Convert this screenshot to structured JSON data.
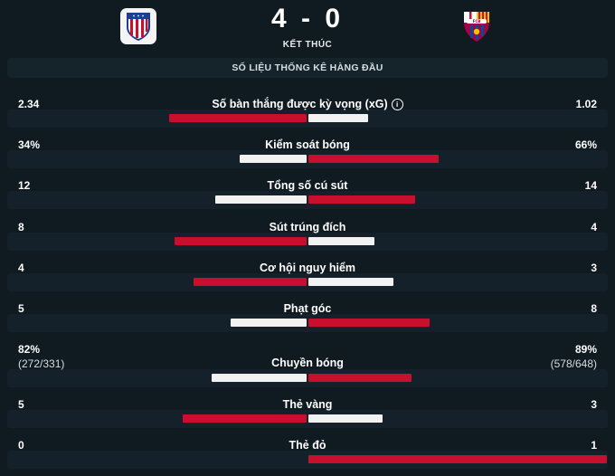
{
  "match": {
    "score": "4 - 0",
    "status": "KẾT THÚC",
    "home_crest": "atletico-madrid-crest",
    "away_crest": "fc-barcelona-crest"
  },
  "section_title": "SỐ LIỆU THỐNG KÊ HÀNG ĐẦU",
  "colors": {
    "home": "#c8102e",
    "away": "#f2f2f2",
    "background": "#101a21"
  },
  "stats": [
    {
      "label": "Số bàn thắng được kỳ vọng (xG)",
      "home": "2.34",
      "away": "1.02",
      "home_val": 2.34,
      "away_val": 1.02,
      "info_icon": true,
      "home_leads": true
    },
    {
      "label": "Kiểm soát bóng",
      "home": "34%",
      "away": "66%",
      "home_val": 34,
      "away_val": 66,
      "home_leads": false
    },
    {
      "label": "Tổng số cú sút",
      "home": "12",
      "away": "14",
      "home_val": 12,
      "away_val": 14,
      "home_leads": false
    },
    {
      "label": "Sút trúng đích",
      "home": "8",
      "away": "4",
      "home_val": 8,
      "away_val": 4,
      "home_leads": true
    },
    {
      "label": "Cơ hội nguy hiểm",
      "home": "4",
      "away": "3",
      "home_val": 4,
      "away_val": 3,
      "home_leads": true
    },
    {
      "label": "Phạt góc",
      "home": "5",
      "away": "8",
      "home_val": 5,
      "away_val": 8,
      "home_leads": false
    },
    {
      "label": "Chuyền bóng",
      "home": "82%",
      "away": "89%",
      "home_sub": "(272/331)",
      "away_sub": "(578/648)",
      "home_val": 82,
      "away_val": 89,
      "home_leads": false
    },
    {
      "label": "Thẻ vàng",
      "home": "5",
      "away": "3",
      "home_val": 5,
      "away_val": 3,
      "home_leads": true
    },
    {
      "label": "Thẻ đỏ",
      "home": "0",
      "away": "1",
      "home_val": 0,
      "away_val": 1,
      "home_leads": false
    }
  ]
}
